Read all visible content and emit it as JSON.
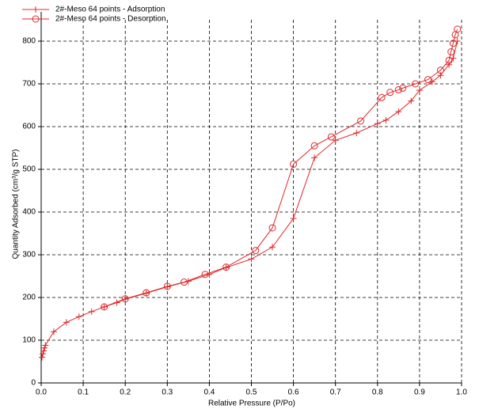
{
  "chart_data": {
    "type": "line",
    "xlabel": "Relative Pressure (P/Po)",
    "ylabel": "Quantity Adsorbed (cm³/g STP)",
    "xlim": [
      0,
      1
    ],
    "ylim": [
      0,
      850
    ],
    "xticks": [
      {
        "value": 0,
        "label": "0.0"
      },
      0.1,
      0.2,
      0.3,
      0.4,
      0.5,
      0.6,
      0.7,
      0.8,
      0.9,
      {
        "value": 1,
        "label": "1.0"
      }
    ],
    "yticks": [
      0,
      100,
      200,
      300,
      400,
      500,
      600,
      700,
      800
    ],
    "grid": true,
    "legend": "top-left",
    "series": [
      {
        "name": "2#-Meso 64 points - Adsorption",
        "color": "#e0282a",
        "marker": "plus",
        "x": [
          0.002,
          0.004,
          0.006,
          0.008,
          0.01,
          0.03,
          0.06,
          0.09,
          0.12,
          0.15,
          0.18,
          0.2,
          0.25,
          0.3,
          0.35,
          0.4,
          0.44,
          0.5,
          0.55,
          0.6,
          0.65,
          0.7,
          0.75,
          0.8,
          0.82,
          0.85,
          0.88,
          0.9,
          0.93,
          0.95,
          0.97,
          0.98,
          0.99
        ],
        "values": [
          60,
          68,
          75,
          82,
          88,
          120,
          142,
          155,
          167,
          178,
          188,
          196,
          210,
          225,
          238,
          254,
          270,
          290,
          318,
          385,
          527,
          568,
          585,
          607,
          615,
          635,
          660,
          685,
          705,
          720,
          745,
          760,
          800
        ]
      },
      {
        "name": "2#-Meso 64 points - Desorption",
        "color": "#e0282a",
        "marker": "circle",
        "x": [
          0.99,
          0.985,
          0.98,
          0.975,
          0.97,
          0.95,
          0.92,
          0.89,
          0.86,
          0.85,
          0.83,
          0.81,
          0.76,
          0.69,
          0.65,
          0.6,
          0.55,
          0.51,
          0.44,
          0.39,
          0.34,
          0.3,
          0.25,
          0.2,
          0.15
        ],
        "values": [
          828,
          815,
          795,
          775,
          755,
          732,
          710,
          700,
          690,
          686,
          680,
          668,
          613,
          576,
          555,
          512,
          363,
          310,
          271,
          254,
          236,
          226,
          211,
          197,
          178
        ]
      }
    ]
  }
}
